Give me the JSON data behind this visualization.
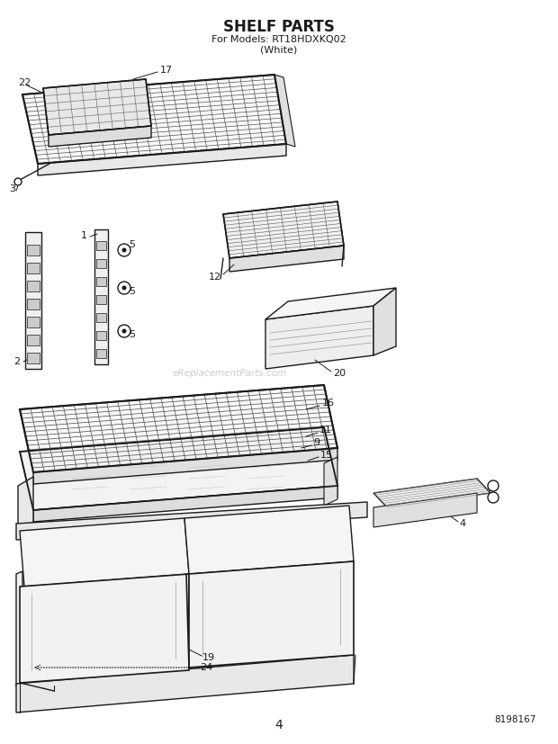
{
  "title": "SHELF PARTS",
  "subtitle1": "For Models: RT18HDXKQ02",
  "subtitle2": "(White)",
  "page_number": "4",
  "doc_number": "8198167",
  "watermark": "eReplacementParts.com",
  "background_color": "#ffffff",
  "line_color": "#1a1a1a",
  "figsize": [
    6.2,
    8.27
  ],
  "dpi": 100
}
